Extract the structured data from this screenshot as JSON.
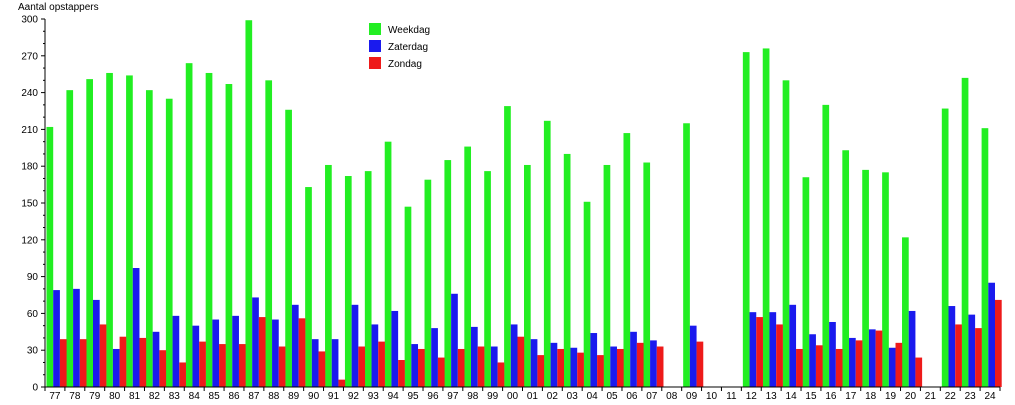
{
  "chart_data": {
    "type": "bar",
    "ylabel": "Aantal opstappers",
    "ylim": [
      0,
      300
    ],
    "yticks": [
      0,
      30,
      60,
      90,
      120,
      150,
      180,
      210,
      240,
      270,
      300
    ],
    "grid": false,
    "legend_position": "top-center",
    "categories": [
      "77",
      "78",
      "79",
      "80",
      "81",
      "82",
      "83",
      "84",
      "85",
      "86",
      "87",
      "88",
      "89",
      "90",
      "91",
      "92",
      "93",
      "94",
      "95",
      "96",
      "97",
      "98",
      "99",
      "00",
      "01",
      "02",
      "03",
      "04",
      "05",
      "06",
      "07",
      "08",
      "09",
      "10",
      "11",
      "12",
      "13",
      "14",
      "15",
      "16",
      "17",
      "18",
      "19",
      "20",
      "21",
      "22",
      "23",
      "24"
    ],
    "series": [
      {
        "name": "Weekdag",
        "color": "#22ee22",
        "values": [
          212,
          242,
          251,
          256,
          254,
          242,
          235,
          264,
          256,
          247,
          299,
          250,
          226,
          163,
          181,
          172,
          176,
          200,
          147,
          169,
          185,
          196,
          176,
          229,
          181,
          217,
          190,
          151,
          181,
          207,
          183,
          0,
          215,
          0,
          0,
          273,
          276,
          250,
          171,
          230,
          193,
          177,
          175,
          122,
          0,
          227,
          252,
          211
        ]
      },
      {
        "name": "Zaterdag",
        "color": "#1a1aee",
        "values": [
          79,
          80,
          71,
          31,
          97,
          45,
          58,
          50,
          55,
          58,
          73,
          55,
          67,
          39,
          39,
          67,
          51,
          62,
          35,
          48,
          76,
          49,
          33,
          51,
          39,
          36,
          32,
          44,
          33,
          45,
          38,
          0,
          50,
          0,
          0,
          61,
          61,
          67,
          43,
          53,
          40,
          47,
          32,
          62,
          0,
          66,
          59,
          85
        ]
      },
      {
        "name": "Zondag",
        "color": "#ee1a1a",
        "values": [
          39,
          39,
          51,
          41,
          40,
          30,
          20,
          37,
          35,
          35,
          57,
          33,
          56,
          29,
          6,
          33,
          37,
          22,
          31,
          24,
          31,
          33,
          20,
          41,
          26,
          31,
          28,
          26,
          31,
          36,
          33,
          0,
          37,
          0,
          0,
          57,
          51,
          31,
          34,
          31,
          38,
          46,
          36,
          24,
          0,
          51,
          48,
          71
        ]
      }
    ]
  }
}
